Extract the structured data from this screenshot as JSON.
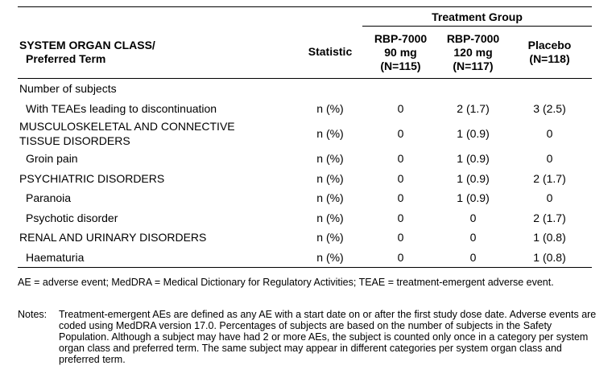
{
  "table": {
    "group_header": "Treatment Group",
    "columns": [
      [
        "SYSTEM ORGAN CLASS/",
        "Preferred Term"
      ],
      [
        "Statistic"
      ],
      [
        "RBP-7000",
        "90 mg",
        "(N=115)"
      ],
      [
        "RBP-7000",
        "120 mg",
        "(N=117)"
      ],
      [
        "Placebo",
        "(N=118)"
      ]
    ],
    "rows": [
      [
        "Number of subjects"
      ],
      [
        "With TEAEs leading to discontinuation",
        "n (%)",
        "0",
        "2 (1.7)",
        "3 (2.5)"
      ],
      [
        [
          "MUSCULOSKELETAL AND CONNECTIVE",
          "TISSUE DISORDERS"
        ],
        "n (%)",
        "0",
        "1 (0.9)",
        "0"
      ],
      [
        "Groin pain",
        "n (%)",
        "0",
        "1 (0.9)",
        "0"
      ],
      [
        "PSYCHIATRIC DISORDERS",
        "n (%)",
        "0",
        "1 (0.9)",
        "2 (1.7)"
      ],
      [
        "Paranoia",
        "n (%)",
        "0",
        "1 (0.9)",
        "0"
      ],
      [
        "Psychotic disorder",
        "n (%)",
        "0",
        "0",
        "2 (1.7)"
      ],
      [
        "RENAL AND URINARY DISORDERS",
        "n (%)",
        "0",
        "0",
        "1 (0.8)"
      ],
      [
        "Haematuria",
        "n (%)",
        "0",
        "0",
        "1 (0.8)"
      ]
    ]
  },
  "footnote": "AE = adverse event; MedDRA = Medical Dictionary for Regulatory Activities; TEAE = treatment-emergent adverse event.",
  "notes_label": "Notes:",
  "notes": "Treatment-emergent AEs are defined as any AE with a start date on or after the first study dose date. Adverse events are coded using MedDRA version 17.0. Percentages of subjects are based on the number of subjects in the Safety Population. Although a subject may have had 2 or more AEs, the subject is counted only once in a category per system organ class and preferred term. The same subject may appear in different categories per system organ class and preferred term."
}
